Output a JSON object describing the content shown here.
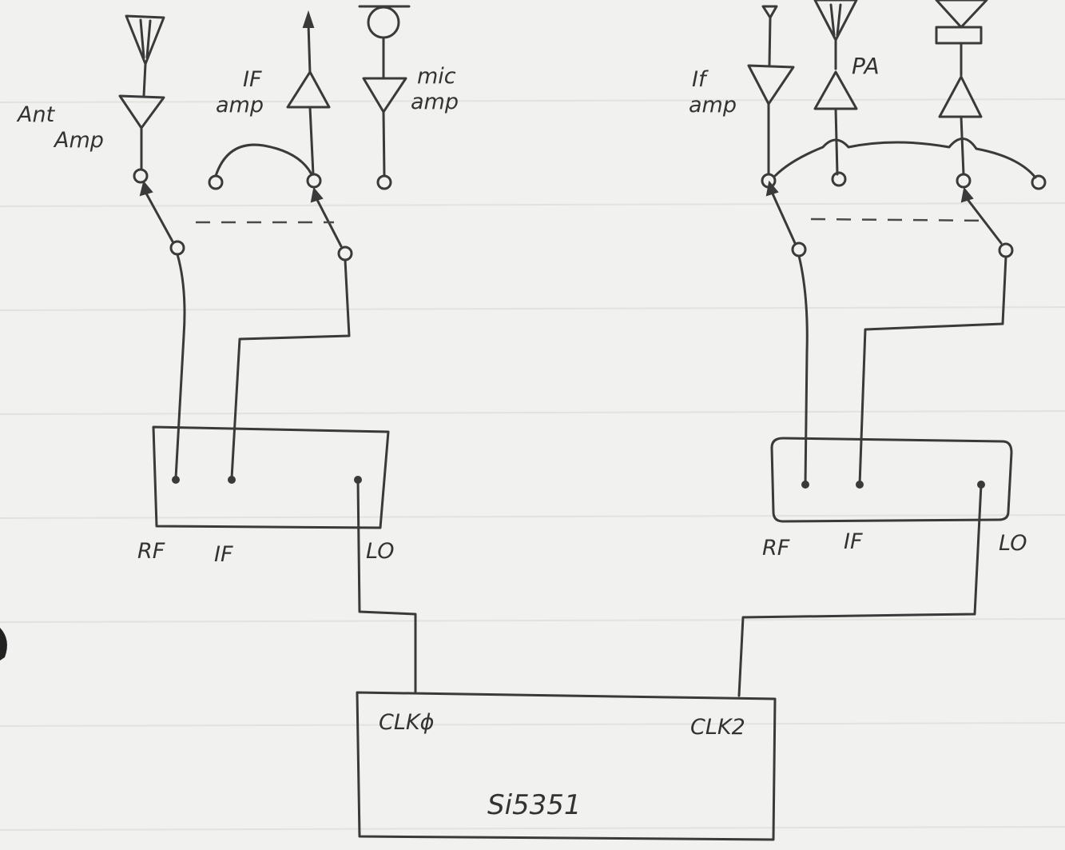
{
  "left_chain": {
    "ant_amp_label_1": "Ant",
    "ant_amp_label_2": "Amp",
    "if_amp_label_1": "IF",
    "if_amp_label_2": "amp",
    "mic_amp_label_1": "mic",
    "mic_amp_label_2": "amp"
  },
  "right_chain": {
    "if_amp_label_1": "If",
    "if_amp_label_2": "amp",
    "pa_label": "PA"
  },
  "left_mixer": {
    "rf_label": "RF",
    "if_label": "IF",
    "lo_label": "LO"
  },
  "right_mixer": {
    "rf_label": "RF",
    "if_label": "IF",
    "lo_label": "LO"
  },
  "synth": {
    "clk0_label": "CLKϕ",
    "clk2_label": "CLK2",
    "chip_label": "Si5351"
  }
}
